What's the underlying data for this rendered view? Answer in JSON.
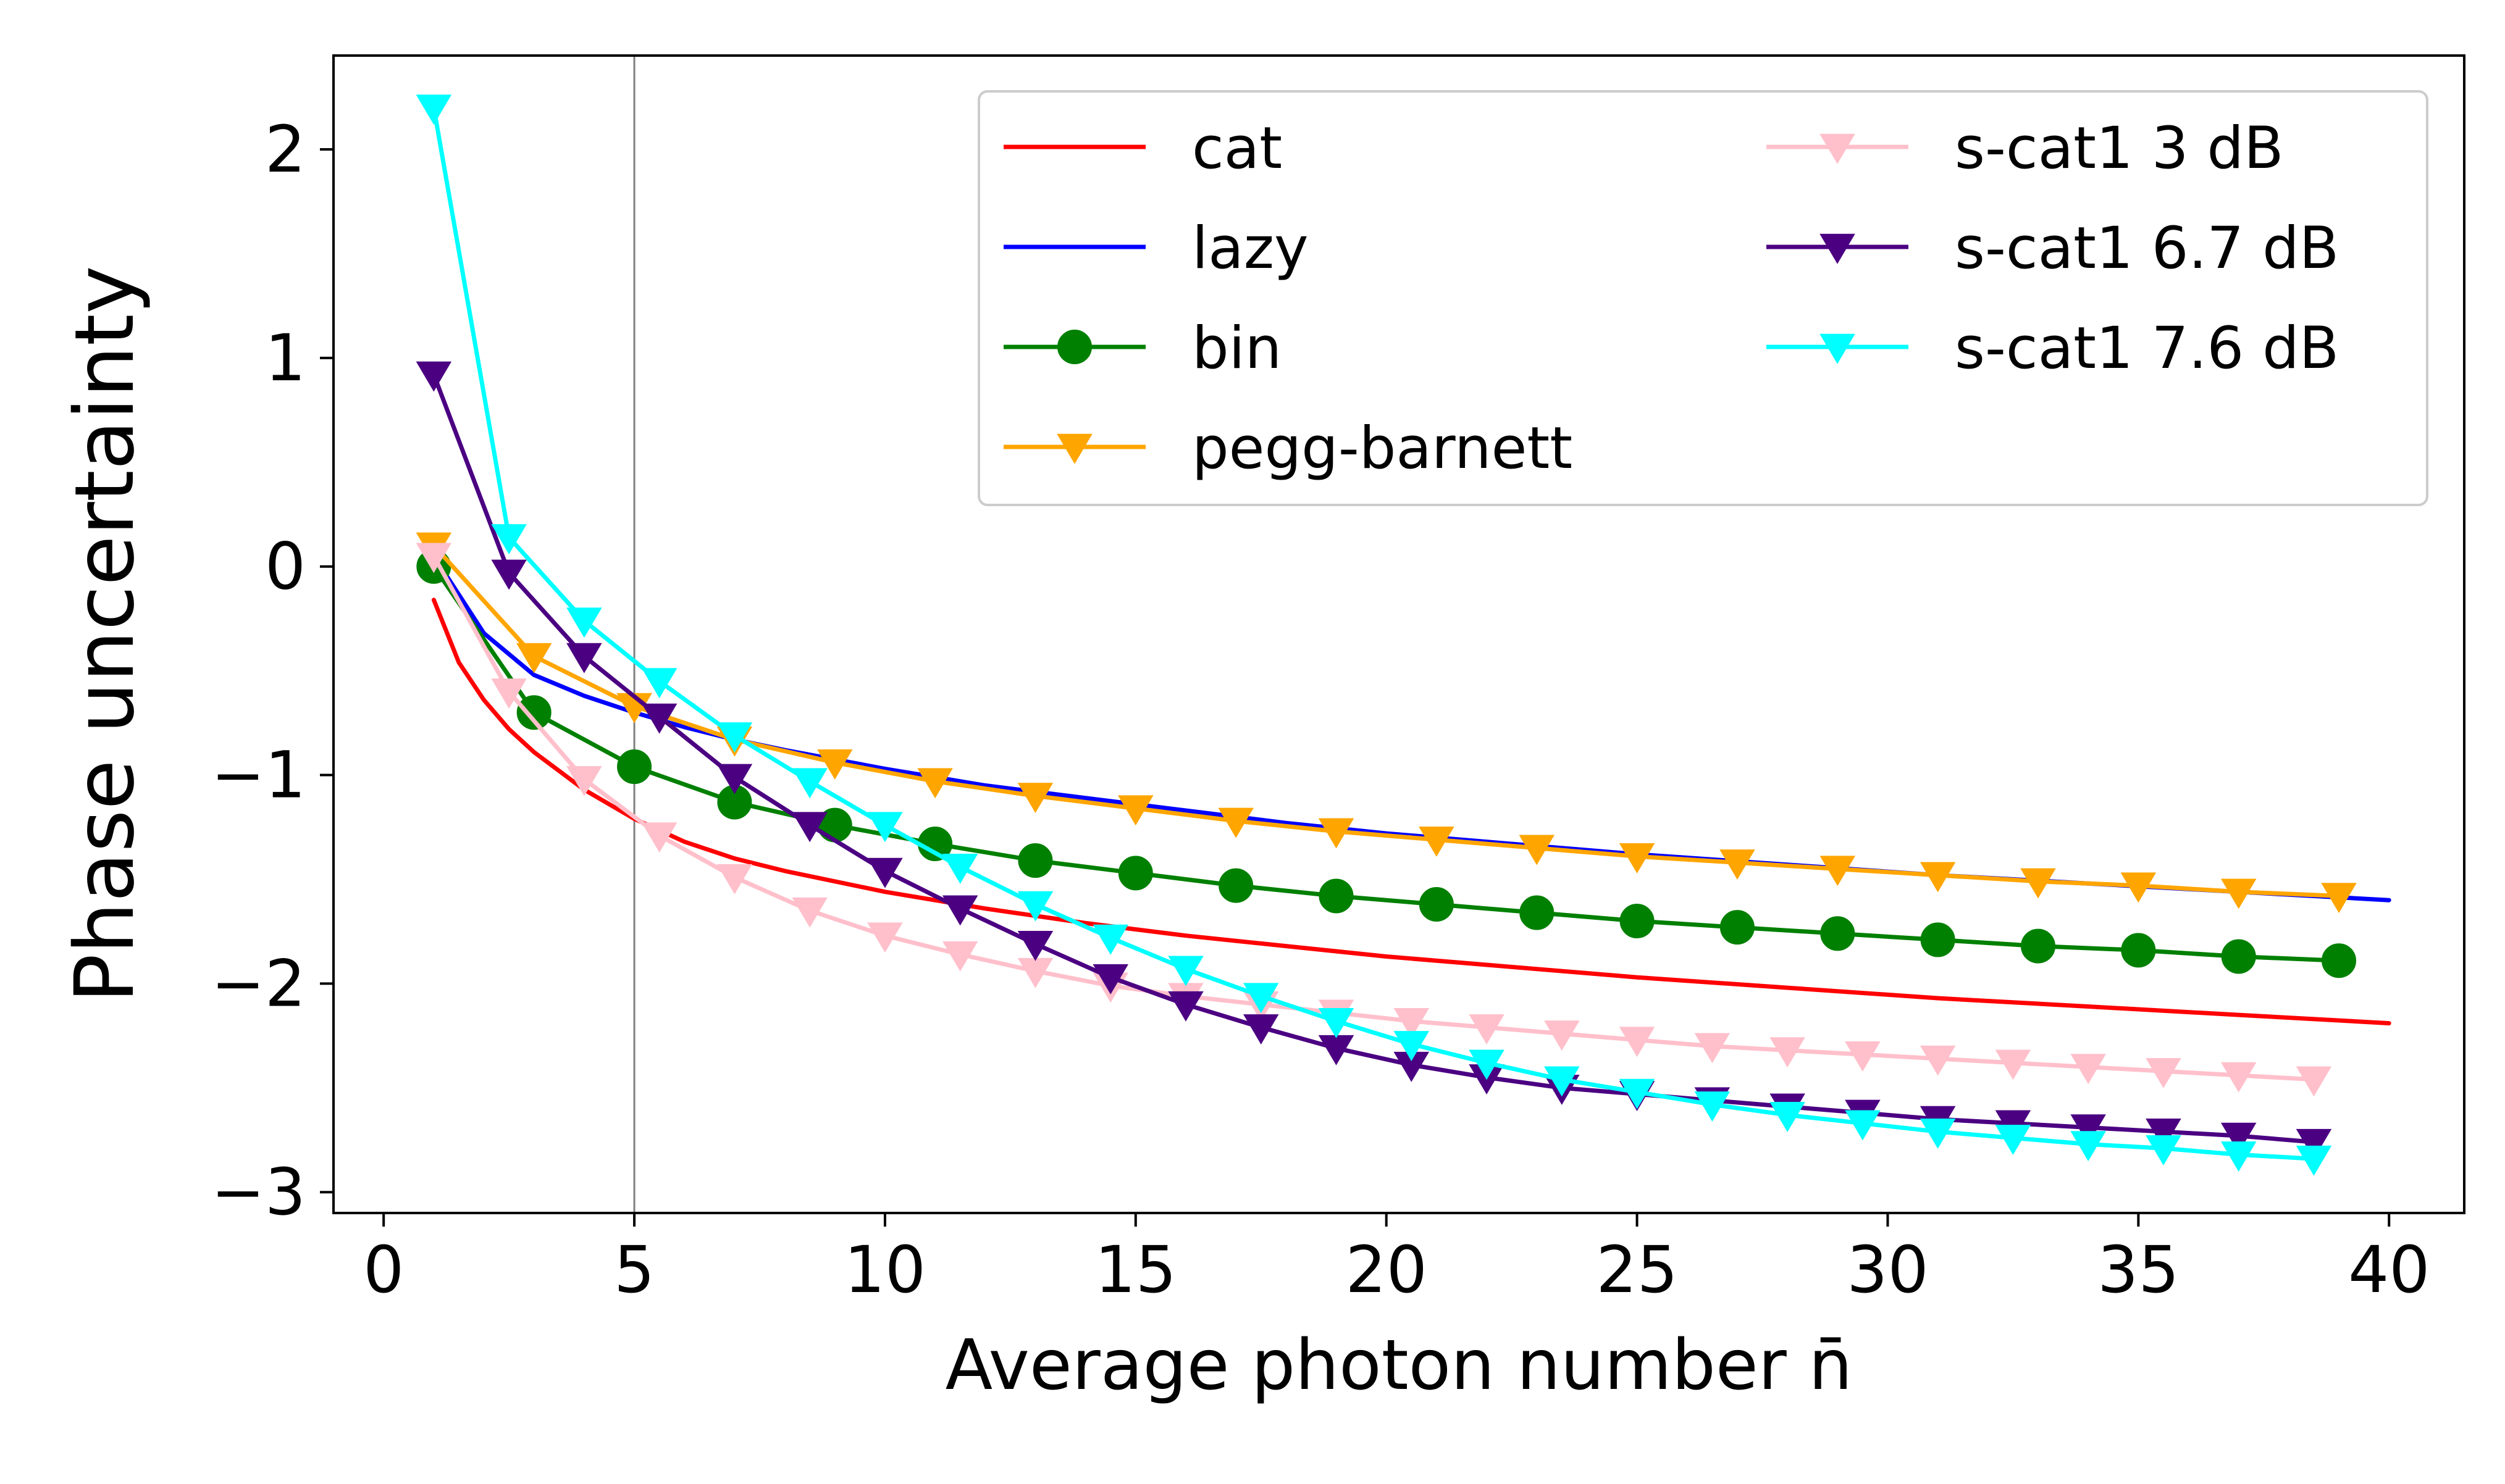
{
  "chart_data": {
    "type": "line",
    "title": "",
    "xlabel": "Average photon number n̄",
    "ylabel": "Phase uncertainty",
    "xlim": [
      -1,
      41.5
    ],
    "ylim": [
      -3.1,
      2.45
    ],
    "xticks": [
      0,
      5,
      10,
      15,
      20,
      25,
      30,
      35,
      40
    ],
    "xtick_labels": [
      "0",
      "5",
      "10",
      "15",
      "20",
      "25",
      "30",
      "35",
      "40"
    ],
    "yticks": [
      -3,
      -2,
      -1,
      0,
      1,
      2
    ],
    "ytick_labels": [
      "−3",
      "−2",
      "−1",
      "0",
      "1",
      "2"
    ],
    "vline": 5,
    "grid": false,
    "legend_placement": "top-right",
    "legend_columns": 2,
    "series": [
      {
        "name": "cat",
        "color": "#ff0000",
        "marker": "none",
        "x": [
          1,
          1.5,
          2,
          2.5,
          3,
          4,
          5,
          6,
          7,
          8,
          10,
          12,
          14,
          16,
          18,
          20,
          22,
          25,
          28,
          31,
          34,
          37,
          40
        ],
        "y": [
          -0.16,
          -0.46,
          -0.64,
          -0.78,
          -0.89,
          -1.07,
          -1.21,
          -1.32,
          -1.4,
          -1.46,
          -1.56,
          -1.64,
          -1.71,
          -1.77,
          -1.82,
          -1.87,
          -1.91,
          -1.97,
          -2.02,
          -2.07,
          -2.11,
          -2.15,
          -2.19
        ]
      },
      {
        "name": "lazy",
        "color": "#0000ff",
        "marker": "none",
        "x": [
          1,
          2,
          3,
          4,
          5,
          6,
          7,
          8,
          10,
          12,
          14,
          16,
          18,
          20,
          22,
          25,
          28,
          31,
          34,
          37,
          40
        ],
        "y": [
          0.05,
          -0.32,
          -0.52,
          -0.62,
          -0.7,
          -0.77,
          -0.83,
          -0.88,
          -0.97,
          -1.05,
          -1.11,
          -1.17,
          -1.23,
          -1.28,
          -1.32,
          -1.38,
          -1.43,
          -1.48,
          -1.52,
          -1.56,
          -1.6
        ]
      },
      {
        "name": "bin",
        "color": "#008000",
        "marker": "circle",
        "x": [
          1,
          3,
          5,
          7,
          9,
          11,
          13,
          15,
          17,
          19,
          21,
          23,
          25,
          27,
          29,
          31,
          33,
          35,
          37,
          39
        ],
        "y": [
          0.0,
          -0.7,
          -0.96,
          -1.13,
          -1.24,
          -1.33,
          -1.41,
          -1.47,
          -1.53,
          -1.58,
          -1.62,
          -1.66,
          -1.7,
          -1.73,
          -1.76,
          -1.79,
          -1.82,
          -1.84,
          -1.87,
          -1.89
        ]
      },
      {
        "name": "pegg-barnett",
        "color": "#ffa500",
        "marker": "triangle-down",
        "x": [
          1,
          3,
          5,
          7,
          9,
          11,
          13,
          15,
          17,
          19,
          21,
          23,
          25,
          27,
          29,
          31,
          33,
          35,
          37,
          39
        ],
        "y": [
          0.1,
          -0.43,
          -0.67,
          -0.83,
          -0.94,
          -1.03,
          -1.1,
          -1.16,
          -1.22,
          -1.27,
          -1.31,
          -1.35,
          -1.39,
          -1.42,
          -1.45,
          -1.48,
          -1.51,
          -1.53,
          -1.56,
          -1.58
        ]
      },
      {
        "name": "s-cat1 3 dB",
        "color": "#ffc0cb",
        "marker": "triangle-down",
        "x": [
          1,
          2.5,
          4,
          5.5,
          7,
          8.5,
          10,
          11.5,
          13,
          14.5,
          16,
          17.5,
          19,
          20.5,
          22,
          23.5,
          25,
          26.5,
          28,
          29.5,
          31,
          32.5,
          34,
          35.5,
          37,
          38.5
        ],
        "y": [
          0.05,
          -0.6,
          -1.02,
          -1.29,
          -1.49,
          -1.65,
          -1.77,
          -1.86,
          -1.94,
          -2.01,
          -2.06,
          -2.1,
          -2.14,
          -2.18,
          -2.21,
          -2.24,
          -2.27,
          -2.3,
          -2.32,
          -2.34,
          -2.36,
          -2.38,
          -2.4,
          -2.42,
          -2.44,
          -2.46
        ]
      },
      {
        "name": "s-cat1 6.7 dB",
        "color": "#4b0082",
        "marker": "triangle-down",
        "x": [
          1,
          2.5,
          4,
          5.5,
          7,
          8.5,
          10,
          11.5,
          13,
          14.5,
          16,
          17.5,
          19,
          20.5,
          22,
          23.5,
          25,
          26.5,
          28,
          29.5,
          31,
          32.5,
          34,
          35.5,
          37,
          38.5
        ],
        "y": [
          0.92,
          -0.03,
          -0.43,
          -0.72,
          -1.01,
          -1.24,
          -1.46,
          -1.64,
          -1.81,
          -1.97,
          -2.1,
          -2.21,
          -2.31,
          -2.39,
          -2.45,
          -2.5,
          -2.53,
          -2.56,
          -2.59,
          -2.62,
          -2.65,
          -2.67,
          -2.69,
          -2.71,
          -2.73,
          -2.76
        ]
      },
      {
        "name": "s-cat1 7.6 dB",
        "color": "#00ffff",
        "marker": "triangle-down",
        "x": [
          1,
          2.5,
          4,
          5.5,
          7,
          8.5,
          10,
          11.5,
          13,
          14.5,
          16,
          17.5,
          19,
          20.5,
          22,
          23.5,
          25,
          26.5,
          28,
          29.5,
          31,
          32.5,
          34,
          35.5,
          37,
          38.5
        ],
        "y": [
          2.2,
          0.14,
          -0.26,
          -0.55,
          -0.81,
          -1.03,
          -1.24,
          -1.44,
          -1.62,
          -1.78,
          -1.93,
          -2.06,
          -2.18,
          -2.29,
          -2.38,
          -2.46,
          -2.52,
          -2.58,
          -2.63,
          -2.67,
          -2.71,
          -2.74,
          -2.77,
          -2.79,
          -2.82,
          -2.84
        ]
      }
    ]
  }
}
